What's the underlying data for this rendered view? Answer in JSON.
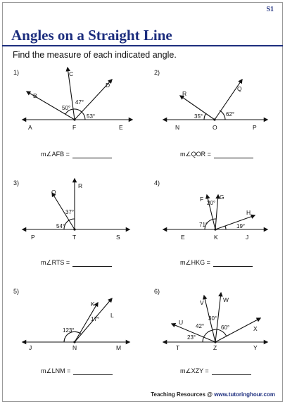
{
  "worksheet": {
    "code": "S1",
    "title": "Angles on a Straight Line",
    "instruction": "Find the measure of each indicated angle."
  },
  "problems": [
    {
      "number": "1)",
      "answer_label": "m∠AFB =",
      "points": [
        "A",
        "F",
        "E",
        "B",
        "C",
        "D"
      ],
      "angles": [
        "50°",
        "47°",
        "53°"
      ]
    },
    {
      "number": "2)",
      "answer_label": "m∠QOR =",
      "points": [
        "N",
        "O",
        "P",
        "R",
        "Q"
      ],
      "angles": [
        "35°",
        "62°"
      ]
    },
    {
      "number": "3)",
      "answer_label": "m∠RTS =",
      "points": [
        "P",
        "T",
        "S",
        "Q",
        "R"
      ],
      "angles": [
        "54°",
        "37°"
      ]
    },
    {
      "number": "4)",
      "answer_label": "m∠HKG =",
      "points": [
        "E",
        "K",
        "J",
        "F",
        "G",
        "H"
      ],
      "angles": [
        "71°",
        "20°",
        "19°"
      ]
    },
    {
      "number": "5)",
      "answer_label": "m∠LNM =",
      "points": [
        "J",
        "N",
        "M",
        "K",
        "L"
      ],
      "angles": [
        "123°",
        "17°"
      ]
    },
    {
      "number": "6)",
      "answer_label": "m∠XZY =",
      "points": [
        "T",
        "Z",
        "Y",
        "U",
        "V",
        "W",
        "X"
      ],
      "angles": [
        "23°",
        "42°",
        "30°",
        "60°"
      ]
    }
  ],
  "footer": {
    "prefix": "Teaching Resources @",
    "url": "www.tutoringhour.com"
  }
}
